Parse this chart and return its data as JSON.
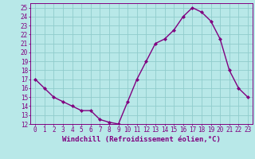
{
  "x": [
    0,
    1,
    2,
    3,
    4,
    5,
    6,
    7,
    8,
    9,
    10,
    11,
    12,
    13,
    14,
    15,
    16,
    17,
    18,
    19,
    20,
    21,
    22,
    23
  ],
  "y": [
    17,
    16,
    15,
    14.5,
    14,
    13.5,
    13.5,
    12.5,
    12.2,
    12,
    14.5,
    17,
    19,
    21,
    21.5,
    22.5,
    24,
    25,
    24.5,
    23.5,
    21.5,
    18,
    16,
    15
  ],
  "line_color": "#800080",
  "marker": "D",
  "marker_size": 2.0,
  "background_color": "#b8e8e8",
  "grid_color": "#90cccc",
  "xlabel": "Windchill (Refroidissement éolien,°C)",
  "ylim": [
    12,
    25.5
  ],
  "xlim": [
    -0.5,
    23.5
  ],
  "yticks": [
    12,
    13,
    14,
    15,
    16,
    17,
    18,
    19,
    20,
    21,
    22,
    23,
    24,
    25
  ],
  "xticks": [
    0,
    1,
    2,
    3,
    4,
    5,
    6,
    7,
    8,
    9,
    10,
    11,
    12,
    13,
    14,
    15,
    16,
    17,
    18,
    19,
    20,
    21,
    22,
    23
  ],
  "tick_fontsize": 5.5,
  "label_fontsize": 6.5,
  "line_width": 1.0,
  "color": "#800080",
  "spine_color": "#800080",
  "axis_line_color": "#800080"
}
